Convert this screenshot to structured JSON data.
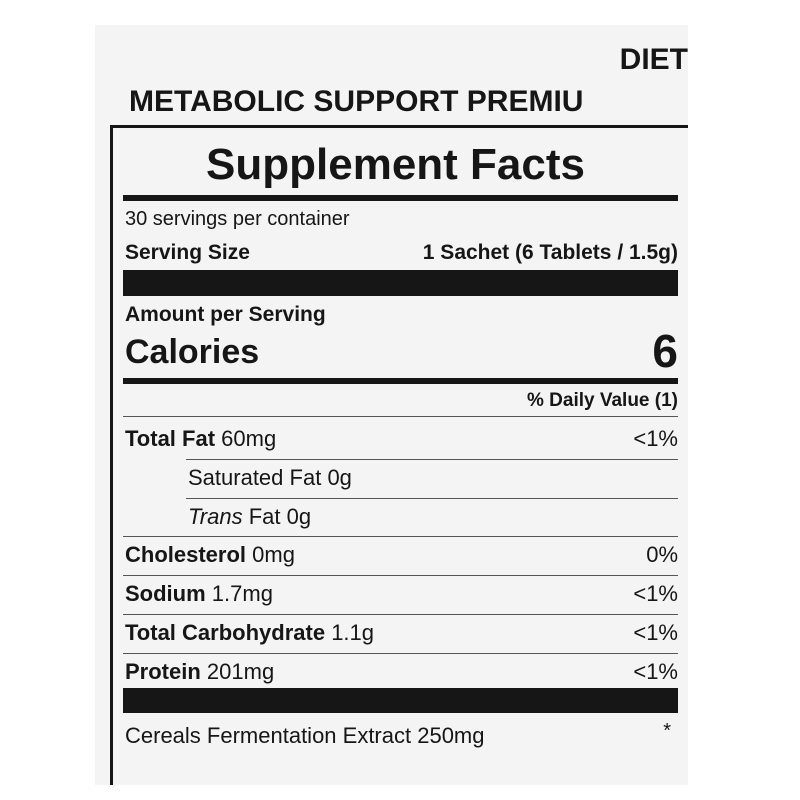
{
  "header": {
    "line1": "DIET",
    "line2": "METABOLIC SUPPORT PREMIU"
  },
  "panel": {
    "title": "Supplement Facts",
    "servings": "30 servings per container",
    "serving_size_label": "Serving Size",
    "serving_size_value": "1 Sachet (6 Tablets / 1.5g)",
    "amount_per_serving": "Amount per Serving",
    "calories_label": "Calories",
    "calories_value": "6",
    "daily_value_header": "% Daily Value (1)",
    "rows": [
      {
        "name": "Total Fat",
        "amount": "60mg",
        "dv": "<1%"
      },
      {
        "name": "Saturated Fat",
        "amount": "0g",
        "indent": true
      },
      {
        "prefix": "Trans",
        "name": "Fat",
        "amount": "0g",
        "indent": true
      },
      {
        "name": "Cholesterol",
        "amount": "0mg",
        "dv": "0%"
      },
      {
        "name": "Sodium",
        "amount": "1.7mg",
        "dv": "<1%"
      },
      {
        "name": "Total Carbohydrate",
        "amount": "1.1g",
        "dv": "<1%"
      },
      {
        "name": "Protein",
        "amount": "201mg",
        "dv": "<1%"
      }
    ],
    "extra": {
      "name": "Cereals Fermentation Extract 250mg",
      "dv": "*"
    }
  }
}
